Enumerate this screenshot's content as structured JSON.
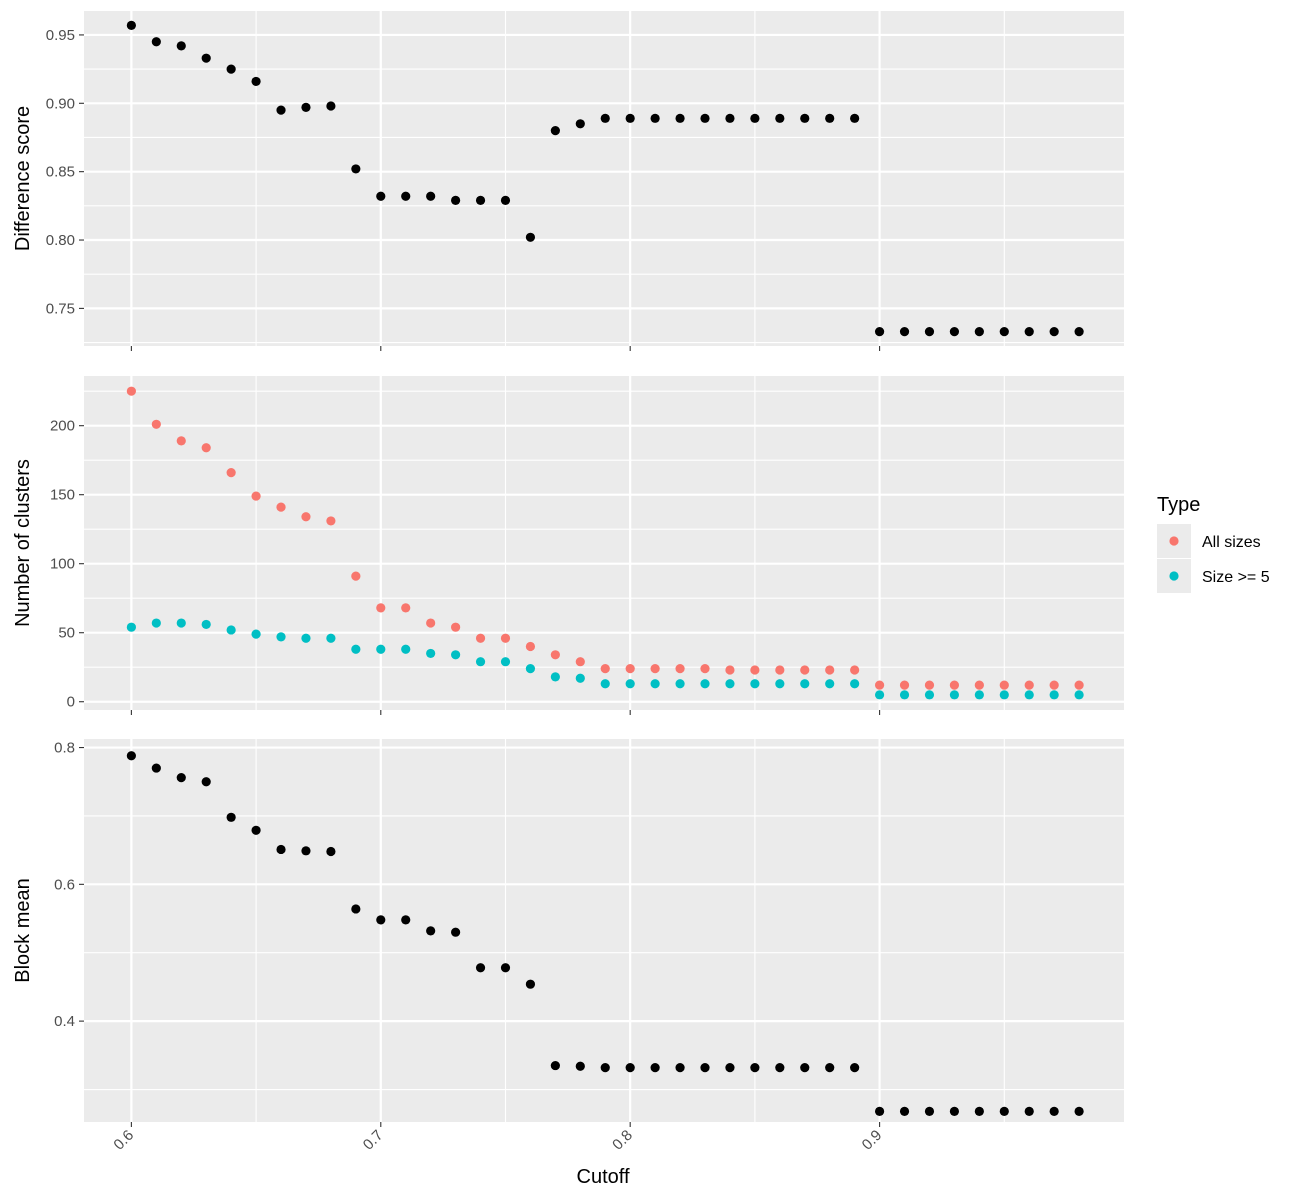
{
  "chart_data": {
    "type": "scatter",
    "x_label": "Cutoff",
    "x_ticks": [
      0.6,
      0.7,
      0.8,
      0.9
    ],
    "x_tick_labels": [
      "0.6",
      "0.7",
      "0.8",
      "0.9"
    ],
    "x_range": [
      0.581,
      0.998
    ],
    "x": [
      0.6,
      0.61,
      0.62,
      0.63,
      0.64,
      0.65,
      0.66,
      0.67,
      0.68,
      0.69,
      0.7,
      0.71,
      0.72,
      0.73,
      0.74,
      0.75,
      0.76,
      0.77,
      0.78,
      0.79,
      0.8,
      0.81,
      0.82,
      0.83,
      0.84,
      0.85,
      0.86,
      0.87,
      0.88,
      0.89,
      0.9,
      0.91,
      0.92,
      0.93,
      0.94,
      0.95,
      0.96,
      0.97,
      0.98
    ],
    "grid": true,
    "panel_background": "#ebebeb",
    "legend": {
      "title": "Type",
      "position": "right",
      "entries": [
        {
          "label": "All sizes",
          "color": "#F8766D"
        },
        {
          "label": "Size >= 5",
          "color": "#00BFC4"
        }
      ]
    },
    "panels": [
      {
        "y_label": "Difference score",
        "y_range": [
          0.7225,
          0.9675
        ],
        "y_ticks": [
          0.75,
          0.8,
          0.85,
          0.9,
          0.95
        ],
        "y_tick_labels": [
          "0.75",
          "0.80",
          "0.85",
          "0.90",
          "0.95"
        ],
        "series": [
          {
            "color": "#000000",
            "values": [
              0.957,
              0.945,
              0.942,
              0.933,
              0.925,
              0.916,
              0.895,
              0.897,
              0.898,
              0.852,
              0.832,
              0.832,
              0.832,
              0.829,
              0.829,
              0.829,
              0.802,
              0.88,
              0.885,
              0.889,
              0.889,
              0.889,
              0.889,
              0.889,
              0.889,
              0.889,
              0.889,
              0.889,
              0.889,
              0.889,
              0.733,
              0.733,
              0.733,
              0.733,
              0.733,
              0.733,
              0.733,
              0.733,
              0.733
            ]
          }
        ]
      },
      {
        "y_label": "Number of clusters",
        "y_range": [
          -6,
          236
        ],
        "y_ticks": [
          0,
          50,
          100,
          150,
          200
        ],
        "y_tick_labels": [
          "0",
          "50",
          "100",
          "150",
          "200"
        ],
        "series": [
          {
            "name": "All sizes",
            "color": "#F8766D",
            "values": [
              225,
              201,
              189,
              184,
              166,
              149,
              141,
              134,
              131,
              91,
              68,
              68,
              57,
              54,
              46,
              46,
              40,
              34,
              29,
              24,
              24,
              24,
              24,
              24,
              23,
              23,
              23,
              23,
              23,
              23,
              12,
              12,
              12,
              12,
              12,
              12,
              12,
              12,
              12
            ]
          },
          {
            "name": "Size >= 5",
            "color": "#00BFC4",
            "values": [
              54,
              57,
              57,
              56,
              52,
              49,
              47,
              46,
              46,
              38,
              38,
              38,
              35,
              34,
              29,
              29,
              24,
              18,
              17,
              13,
              13,
              13,
              13,
              13,
              13,
              13,
              13,
              13,
              13,
              13,
              5,
              5,
              5,
              5,
              5,
              5,
              5,
              5,
              5
            ]
          }
        ]
      },
      {
        "y_label": "Block mean",
        "y_range": [
          0.2525,
          0.8125
        ],
        "y_ticks": [
          0.4,
          0.6,
          0.8
        ],
        "y_tick_labels": [
          "0.4",
          "0.6",
          "0.8"
        ],
        "series": [
          {
            "color": "#000000",
            "values": [
              0.788,
              0.77,
              0.756,
              0.75,
              0.698,
              0.679,
              0.651,
              0.649,
              0.648,
              0.564,
              0.548,
              0.548,
              0.532,
              0.53,
              0.478,
              0.478,
              0.454,
              0.335,
              0.334,
              0.332,
              0.332,
              0.332,
              0.332,
              0.332,
              0.332,
              0.332,
              0.332,
              0.332,
              0.332,
              0.332,
              0.268,
              0.268,
              0.268,
              0.268,
              0.268,
              0.268,
              0.268,
              0.268,
              0.268
            ]
          }
        ]
      }
    ]
  }
}
